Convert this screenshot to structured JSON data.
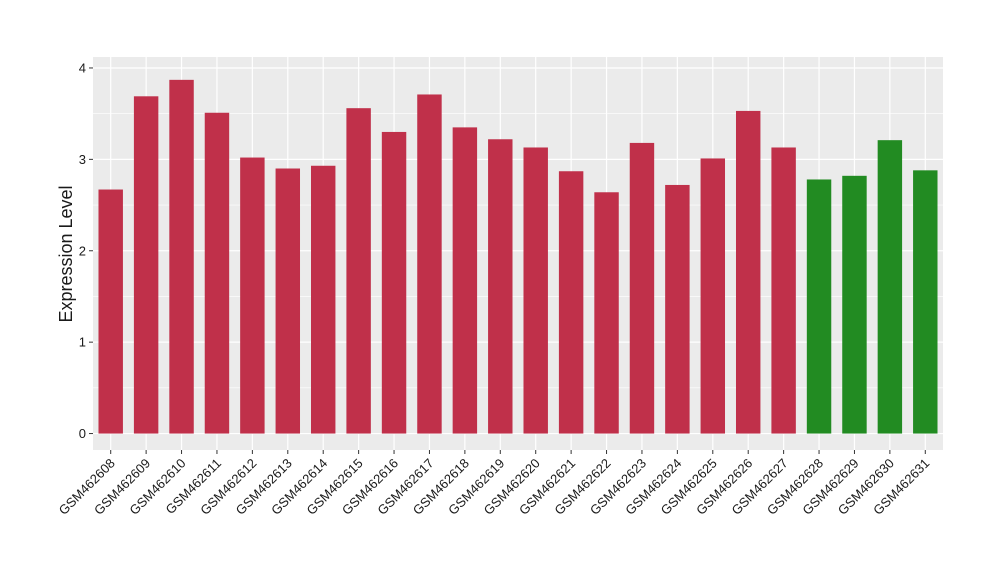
{
  "chart_data": {
    "type": "bar",
    "ylabel": "Expression Level",
    "xlabel": "",
    "ylim": [
      -0.18,
      4.12
    ],
    "yticks": [
      0,
      1,
      2,
      3,
      4
    ],
    "grid": true,
    "legend": "none",
    "colors": {
      "red_group": "#c0304a",
      "green_group": "#228b22",
      "panel_bg": "#ebebeb",
      "grid": "#ffffff"
    },
    "categories": [
      "GSM462608",
      "GSM462609",
      "GSM462610",
      "GSM462611",
      "GSM462612",
      "GSM462613",
      "GSM462614",
      "GSM462615",
      "GSM462616",
      "GSM462617",
      "GSM462618",
      "GSM462619",
      "GSM462620",
      "GSM462621",
      "GSM462622",
      "GSM462623",
      "GSM462624",
      "GSM462625",
      "GSM462626",
      "GSM462627",
      "GSM462628",
      "GSM462629",
      "GSM462630",
      "GSM462631"
    ],
    "values": [
      2.67,
      3.69,
      3.87,
      3.51,
      3.02,
      2.9,
      2.93,
      3.56,
      3.3,
      3.71,
      3.35,
      3.22,
      3.13,
      2.87,
      2.64,
      3.18,
      2.72,
      3.01,
      3.53,
      3.13,
      2.78,
      2.82,
      3.21,
      2.88
    ],
    "groups": [
      "red_group",
      "red_group",
      "red_group",
      "red_group",
      "red_group",
      "red_group",
      "red_group",
      "red_group",
      "red_group",
      "red_group",
      "red_group",
      "red_group",
      "red_group",
      "red_group",
      "red_group",
      "red_group",
      "red_group",
      "red_group",
      "red_group",
      "red_group",
      "green_group",
      "green_group",
      "green_group",
      "green_group"
    ]
  }
}
